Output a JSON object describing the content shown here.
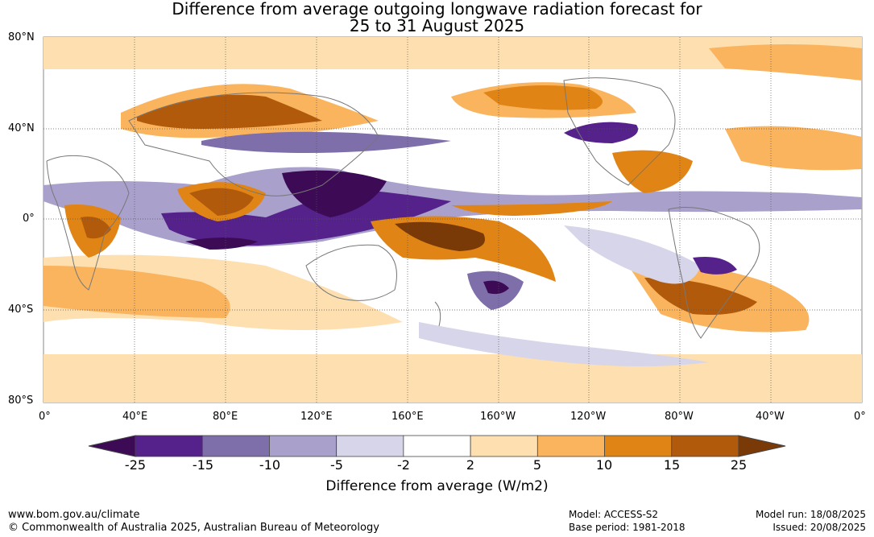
{
  "title": {
    "line1": "Difference from average outgoing longwave radiation forecast for",
    "line2": "25 to 31 August 2025"
  },
  "map": {
    "lat_labels": [
      "80°N",
      "40°N",
      "0°",
      "40°S",
      "80°S"
    ],
    "lon_labels": [
      "0°",
      "40°E",
      "80°E",
      "120°E",
      "160°E",
      "160°W",
      "120°W",
      "80°W",
      "40°W",
      "0°"
    ]
  },
  "colorbar": {
    "title": "Difference from average (W/m2)",
    "ticks": [
      "-25",
      "-15",
      "-10",
      "-5",
      "-2",
      "2",
      "5",
      "10",
      "15",
      "25"
    ],
    "colors": [
      "#3d0a55",
      "#55218a",
      "#7e6eaa",
      "#a9a1cc",
      "#d6d5ea",
      "#ffffff",
      "#fedfb0",
      "#fbb45e",
      "#e08515",
      "#b15a0c",
      "#7a3a08"
    ]
  },
  "footer": {
    "url": "www.bom.gov.au/climate",
    "copyright": "© Commonwealth of Australia 2025, Australian Bureau of Meteorology",
    "model": "Model: ACCESS-S2",
    "base_period": "Base period: 1981-2018",
    "model_run": "Model run: 18/08/2025",
    "issued": "Issued: 20/08/2025"
  }
}
